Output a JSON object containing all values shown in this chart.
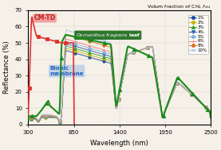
{
  "title": "Volum fraction of Chl, $f_{\\mathrm{chl}}$",
  "xlabel": "Wavelength (nm)",
  "ylabel": "Reflectance (%)",
  "xlim": [
    300,
    2500
  ],
  "ylim": [
    0,
    70
  ],
  "yticks": [
    0,
    10,
    20,
    30,
    40,
    50,
    60,
    70
  ],
  "xticks": [
    300,
    850,
    1400,
    1950,
    2500
  ],
  "legend_labels": [
    "1%",
    "2%",
    "3%",
    "4%",
    "5%",
    "6%",
    "8%",
    "10%"
  ],
  "legend_colors": [
    "#1f4e9c",
    "#c8b400",
    "#2ca02c",
    "#2c5fa8",
    "#7fb3d9",
    "#f08080",
    "#e07020",
    "#a0c8e8"
  ],
  "legend_markers": [
    "o",
    "o",
    "^",
    "v",
    "o",
    "+",
    "o",
    "x"
  ],
  "cmtd_color": "#e03030",
  "leaf_color": "#1a8a1a",
  "annotation_cmtd": "CM-TD",
  "annotation_bionic": "Bionic\nmembrane",
  "bg_color": "#f5f0e8",
  "fracs": [
    0.01,
    0.02,
    0.03,
    0.04,
    0.05,
    0.06,
    0.08,
    0.1
  ]
}
